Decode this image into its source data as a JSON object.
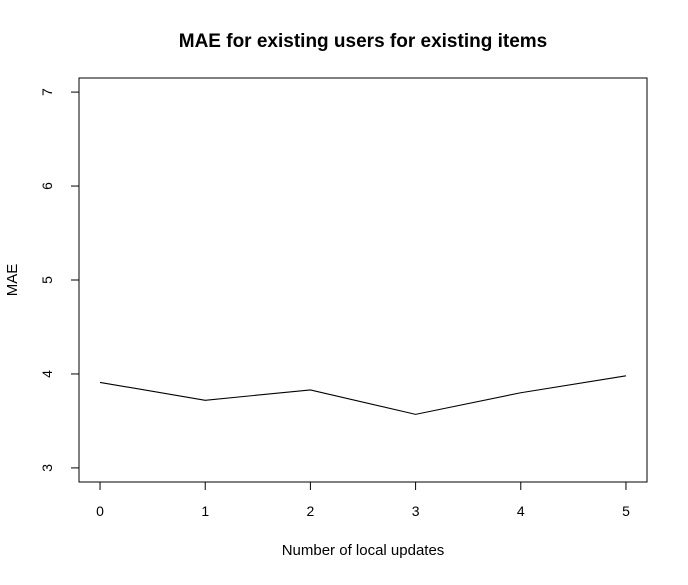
{
  "chart_data": {
    "type": "line",
    "title": "MAE for existing users for existing items",
    "xlabel": "Number of local updates",
    "ylabel": "MAE",
    "x": [
      0,
      1,
      2,
      3,
      4,
      5
    ],
    "series": [
      {
        "values": [
          3.91,
          3.72,
          3.83,
          3.57,
          3.8,
          3.98
        ]
      }
    ],
    "xlim": [
      -0.2,
      5.2
    ],
    "ylim": [
      2.85,
      7.15
    ],
    "x_ticks": [
      "0",
      "1",
      "2",
      "3",
      "4",
      "5"
    ],
    "y_ticks": [
      "3",
      "4",
      "5",
      "6",
      "7"
    ],
    "line_color": "#000000",
    "grid": false,
    "legend": "none"
  }
}
